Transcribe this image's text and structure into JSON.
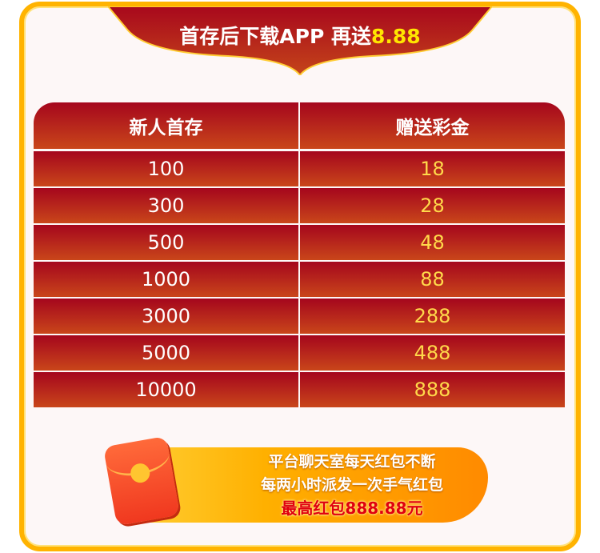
{
  "banner": {
    "title": "首存后下载APP 再送",
    "highlight": "8.88"
  },
  "table": {
    "headers": [
      "新人首存",
      "赠送彩金"
    ],
    "rows": [
      [
        "100",
        "18"
      ],
      [
        "300",
        "28"
      ],
      [
        "500",
        "48"
      ],
      [
        "1000",
        "88"
      ],
      [
        "3000",
        "288"
      ],
      [
        "5000",
        "488"
      ],
      [
        "10000",
        "888"
      ]
    ]
  },
  "promo": {
    "line1": "平台聊天室每天红包不断",
    "line2": "每两小时派发一次手气红包",
    "line3": "最高红包888.88元"
  }
}
